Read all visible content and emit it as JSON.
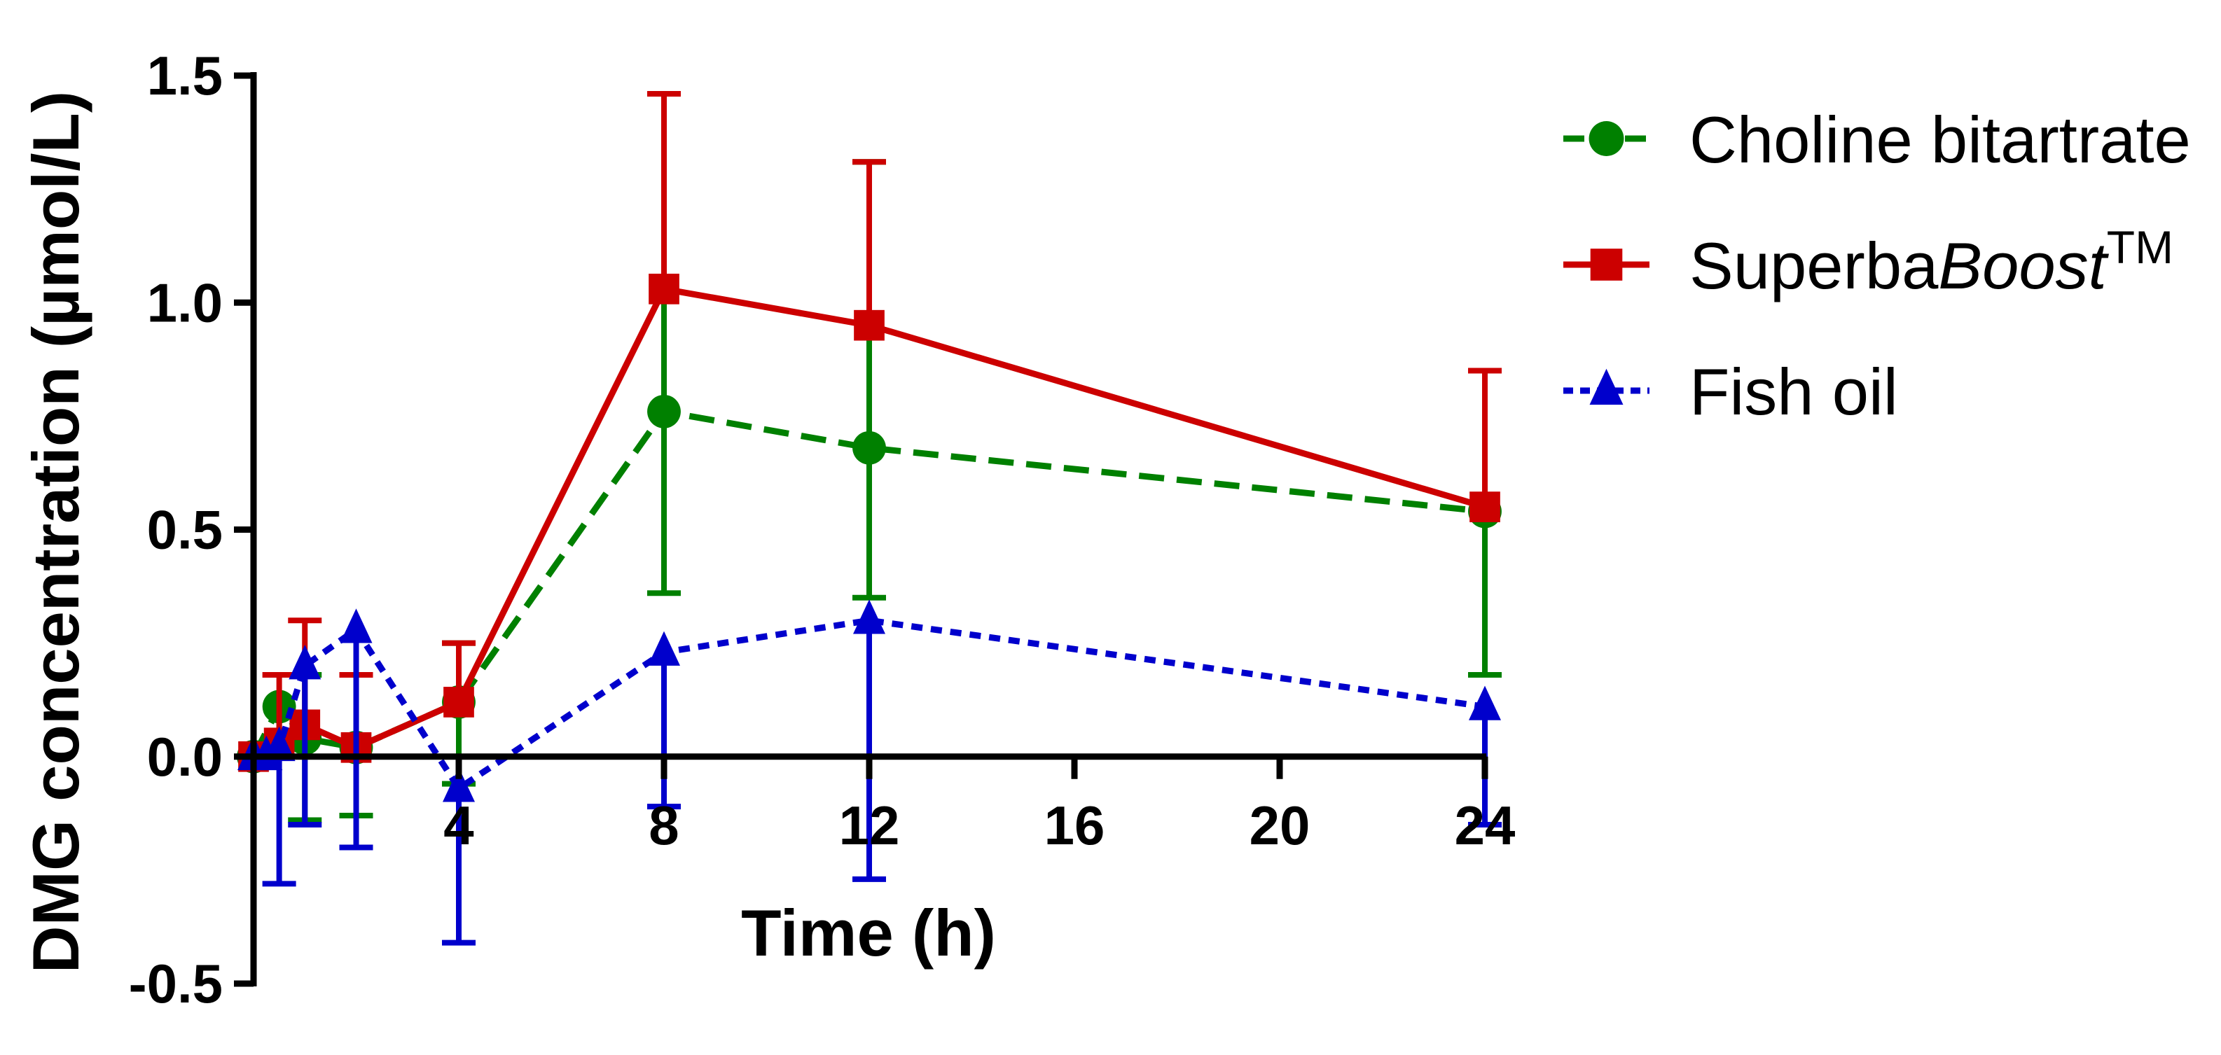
{
  "chart_data": {
    "type": "line",
    "title": "",
    "xlabel": "Time (h)",
    "ylabel": "DMG concentration (µmol/L)",
    "xlim": [
      0,
      24
    ],
    "ylim": [
      -0.5,
      1.5
    ],
    "xticks": [
      4,
      8,
      12,
      16,
      20,
      24
    ],
    "xtick_labels": [
      "4",
      "8",
      "12",
      "16",
      "20",
      "24"
    ],
    "yticks": [
      -0.5,
      0.0,
      0.5,
      1.0,
      1.5
    ],
    "ytick_labels": [
      "-0.5",
      "0.0",
      "0.5",
      "1.0",
      "1.5"
    ],
    "legend_position": "top-right",
    "series": [
      {
        "name": "Choline bitartrate",
        "color": "#008000",
        "line_style": "dashed",
        "marker": "circle",
        "x": [
          0,
          0.5,
          1,
          2,
          4,
          8,
          12,
          24
        ],
        "y": [
          0.0,
          0.11,
          0.04,
          0.02,
          0.12,
          0.76,
          0.68,
          0.54
        ],
        "error_upper": [
          0.0,
          0.0,
          0.18,
          0.18,
          0.25,
          1.46,
          1.31,
          0.54
        ],
        "error_lower": [
          0.0,
          0.11,
          -0.14,
          -0.13,
          -0.06,
          0.36,
          0.35,
          0.18
        ]
      },
      {
        "name": "SuperbaBoost™",
        "name_parts": [
          "Superba",
          "Boost",
          "TM"
        ],
        "color": "#CC0000",
        "line_style": "solid",
        "marker": "square",
        "x": [
          0,
          0.5,
          1,
          2,
          4,
          8,
          12,
          24
        ],
        "y": [
          0.0,
          0.03,
          0.07,
          0.02,
          0.12,
          1.03,
          0.95,
          0.55
        ],
        "error_upper": [
          0.0,
          0.18,
          0.3,
          0.18,
          0.25,
          1.46,
          1.31,
          0.85
        ],
        "error_lower": [
          0.0,
          0.03,
          0.07,
          0.02,
          0.12,
          1.03,
          0.95,
          0.55
        ]
      },
      {
        "name": "Fish oil",
        "color": "#0000CC",
        "line_style": "dotted",
        "marker": "triangle",
        "x": [
          0,
          0.25,
          0.5,
          1,
          2,
          4,
          8,
          12,
          24
        ],
        "y": [
          0.0,
          0.0,
          0.02,
          0.2,
          0.28,
          -0.07,
          0.23,
          0.3,
          0.11
        ],
        "error_upper": [
          0.0,
          0.0,
          0.02,
          0.2,
          0.28,
          -0.07,
          0.23,
          0.3,
          0.11
        ],
        "error_lower": [
          0.0,
          0.0,
          -0.28,
          -0.15,
          -0.2,
          -0.41,
          -0.11,
          -0.27,
          -0.15
        ]
      }
    ]
  }
}
